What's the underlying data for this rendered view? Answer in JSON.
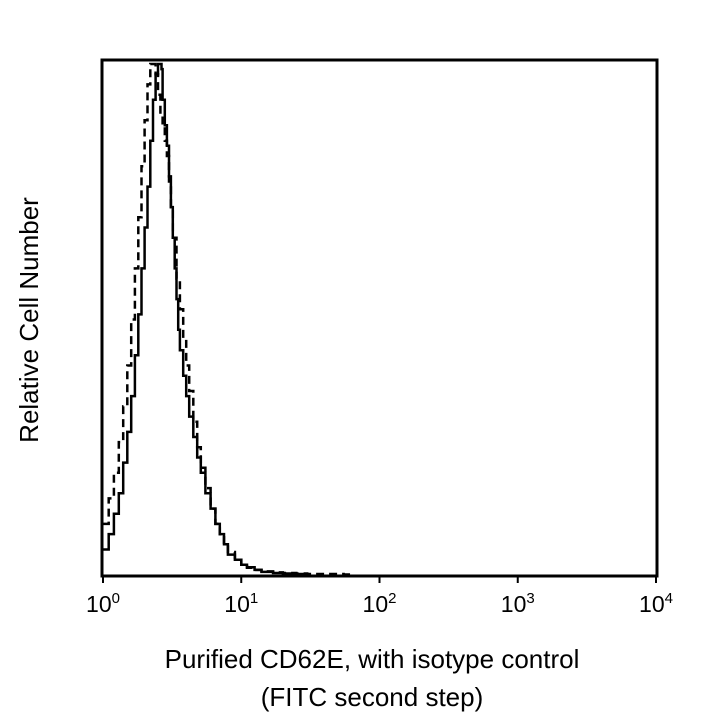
{
  "chart_data": {
    "type": "line",
    "title": "",
    "xlabel": [
      "Purified CD62E, with isotype control",
      "(FITC second step)"
    ],
    "ylabel": "Relative Cell Number",
    "x_scale": "log",
    "xlim": [
      1,
      10000
    ],
    "ylim": [
      0,
      1
    ],
    "y_tick_labels": false,
    "grid": false,
    "legend": "none",
    "x_ticks": [
      {
        "base": "10",
        "exp": "0",
        "value": 1
      },
      {
        "base": "10",
        "exp": "1",
        "value": 10
      },
      {
        "base": "10",
        "exp": "2",
        "value": 100
      },
      {
        "base": "10",
        "exp": "3",
        "value": 1000
      },
      {
        "base": "10",
        "exp": "4",
        "value": 10000
      }
    ],
    "series": [
      {
        "style": "solid",
        "color": "#000000",
        "x": [
          1.0,
          1.1,
          1.2,
          1.3,
          1.4,
          1.5,
          1.6,
          1.7,
          1.8,
          1.9,
          2.0,
          2.1,
          2.2,
          2.3,
          2.4,
          2.5,
          2.6,
          2.65,
          2.7,
          2.8,
          2.9,
          3.0,
          3.1,
          3.2,
          3.3,
          3.4,
          3.5,
          3.6,
          3.8,
          4.0,
          4.2,
          4.5,
          4.8,
          5.1,
          5.5,
          6.0,
          6.5,
          7.0,
          7.5,
          8.0,
          9.0,
          10.0,
          11.0,
          12.5,
          14.0,
          17.0,
          20.0,
          25.0,
          30.0
        ],
        "y": [
          0.05,
          0.08,
          0.12,
          0.16,
          0.22,
          0.28,
          0.35,
          0.43,
          0.51,
          0.6,
          0.68,
          0.76,
          0.85,
          0.93,
          0.98,
          1.0,
          1.0,
          0.99,
          0.93,
          0.88,
          0.84,
          0.78,
          0.72,
          0.66,
          0.6,
          0.54,
          0.48,
          0.44,
          0.39,
          0.35,
          0.31,
          0.27,
          0.23,
          0.2,
          0.16,
          0.13,
          0.1,
          0.08,
          0.06,
          0.04,
          0.03,
          0.02,
          0.015,
          0.01,
          0.006,
          0.004,
          0.003,
          0.002,
          0.0
        ]
      },
      {
        "style": "dashed",
        "color": "#000000",
        "x": [
          1.0,
          1.1,
          1.2,
          1.3,
          1.4,
          1.5,
          1.6,
          1.7,
          1.8,
          1.9,
          2.0,
          2.1,
          2.2,
          2.3,
          2.4,
          2.5,
          2.6,
          2.7,
          2.8,
          2.9,
          3.0,
          3.1,
          3.2,
          3.4,
          3.6,
          3.8,
          4.0,
          4.2,
          4.5,
          4.8,
          5.1,
          5.5,
          6.0,
          6.5,
          7.0,
          7.5,
          8.0,
          9.0,
          10.0,
          11.0,
          12.5,
          14.0,
          17.0,
          20.0,
          25.0,
          30.0,
          40.0,
          55.0,
          60.0
        ],
        "y": [
          0.1,
          0.15,
          0.2,
          0.26,
          0.33,
          0.41,
          0.5,
          0.6,
          0.7,
          0.8,
          0.89,
          0.96,
          1.0,
          1.0,
          0.98,
          0.94,
          0.9,
          0.88,
          0.85,
          0.82,
          0.77,
          0.72,
          0.66,
          0.58,
          0.52,
          0.46,
          0.41,
          0.36,
          0.3,
          0.25,
          0.21,
          0.17,
          0.13,
          0.1,
          0.08,
          0.06,
          0.045,
          0.03,
          0.02,
          0.014,
          0.01,
          0.007,
          0.005,
          0.004,
          0.003,
          0.002,
          0.002,
          0.001,
          0.0
        ]
      }
    ]
  }
}
